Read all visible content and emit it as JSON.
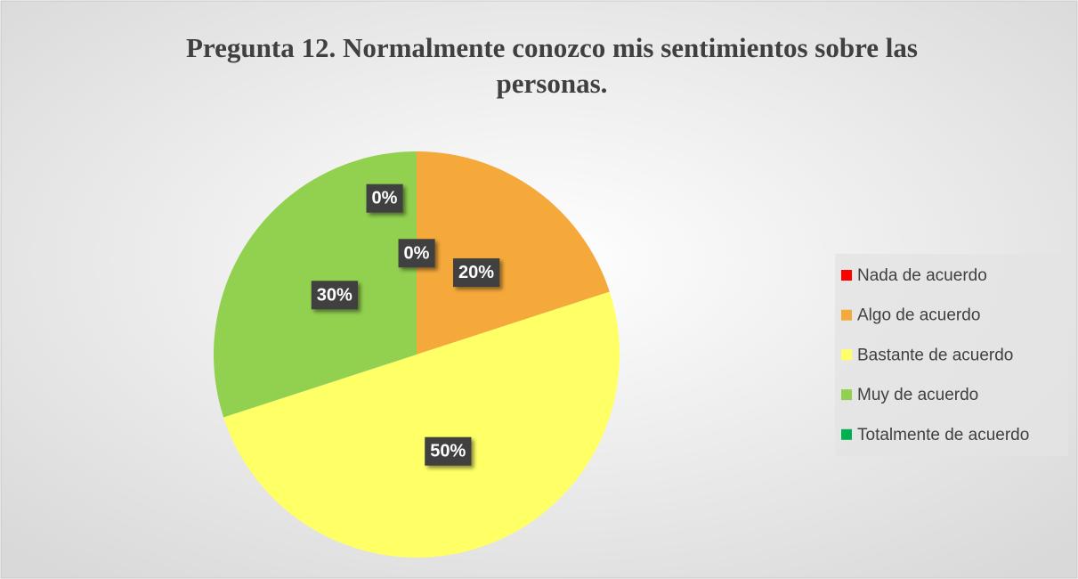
{
  "chart_data": {
    "type": "pie",
    "title": "Pregunta 12. Normalmente conozco mis sentimientos sobre las personas.",
    "categories": [
      "Nada de acuerdo",
      "Algo de acuerdo",
      "Bastante de acuerdo",
      "Muy de acuerdo",
      "Totalmente de acuerdo"
    ],
    "values": [
      0,
      20,
      50,
      30,
      0
    ],
    "value_labels": [
      "0%",
      "20%",
      "50%",
      "30%",
      "0%"
    ],
    "colors": [
      "#ff0000",
      "#f5a93b",
      "#ffff66",
      "#92d050",
      "#00b050"
    ],
    "legend": "right"
  }
}
